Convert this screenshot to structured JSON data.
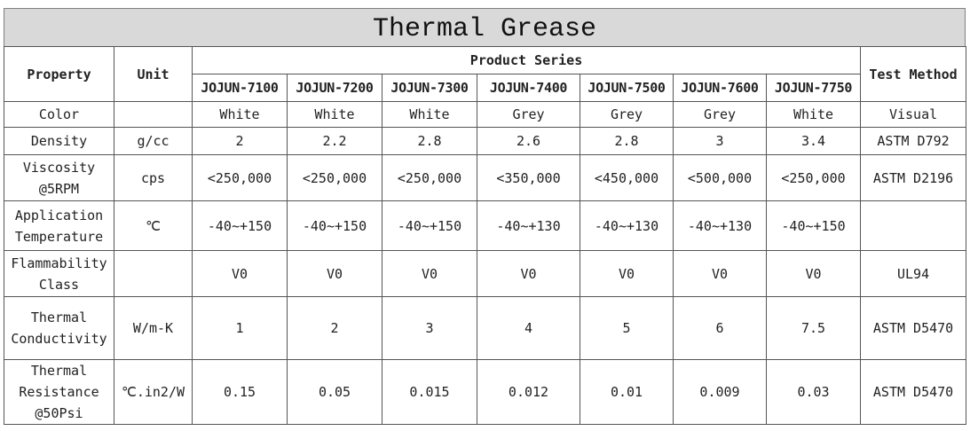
{
  "title": "Thermal Grease",
  "headers": {
    "property": "Property",
    "unit": "Unit",
    "product_series": "Product Series",
    "test_method": "Test Method"
  },
  "products": [
    "JOJUN-7100",
    "JOJUN-7200",
    "JOJUN-7300",
    "JOJUN-7400",
    "JOJUN-7500",
    "JOJUN-7600",
    "JOJUN-7750"
  ],
  "rows": [
    {
      "property": [
        "Color"
      ],
      "unit": "",
      "values": [
        "White",
        "White",
        "White",
        "Grey",
        "Grey",
        "Grey",
        "White"
      ],
      "method": "Visual"
    },
    {
      "property": [
        "Density"
      ],
      "unit": "g/cc",
      "values": [
        "2",
        "2.2",
        "2.8",
        "2.6",
        "2.8",
        "3",
        "3.4"
      ],
      "method": "ASTM D792"
    },
    {
      "property": [
        "Viscosity",
        "@5RPM"
      ],
      "unit": "cps",
      "values": [
        "<250,000",
        "<250,000",
        "<250,000",
        "<350,000",
        "<450,000",
        "<500,000",
        "<250,000"
      ],
      "method": "ASTM D2196"
    },
    {
      "property": [
        "Application",
        "Temperature"
      ],
      "unit": "℃",
      "values": [
        "-40~+150",
        "-40~+150",
        "-40~+150",
        "-40~+130",
        "-40~+130",
        "-40~+130",
        "-40~+150"
      ],
      "method": ""
    },
    {
      "property": [
        "Flammability",
        "Class"
      ],
      "unit": "",
      "values": [
        "V0",
        "V0",
        "V0",
        "V0",
        "V0",
        "V0",
        "V0"
      ],
      "method": "UL94"
    },
    {
      "property": [
        "Thermal",
        "Conductivity"
      ],
      "unit": "W/m-K",
      "values": [
        "1",
        "2",
        "3",
        "4",
        "5",
        "6",
        "7.5"
      ],
      "method": "ASTM D5470"
    },
    {
      "property": [
        "Thermal",
        "Resistance",
        "@50Psi"
      ],
      "unit": "℃.in2/W",
      "values": [
        "0.15",
        "0.05",
        "0.015",
        "0.012",
        "0.01",
        "0.009",
        "0.03"
      ],
      "method": "ASTM D5470"
    }
  ]
}
